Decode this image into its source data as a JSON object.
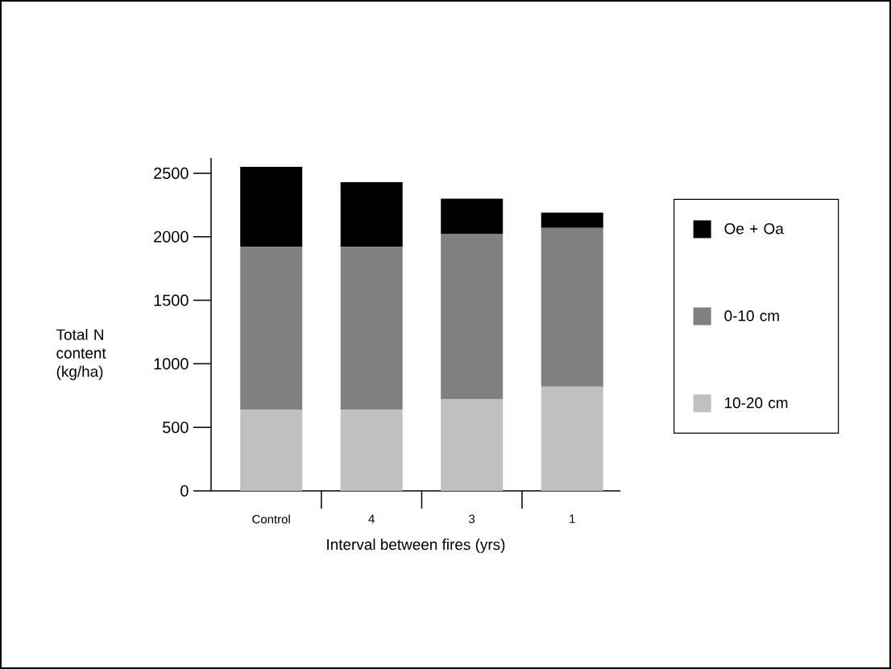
{
  "chart_data": {
    "type": "bar",
    "stacked": true,
    "xlabel": "Interval between fires (yrs)",
    "ylabel": "Total N content (kg/ha)",
    "categories": [
      "Control",
      "4",
      "3",
      "1"
    ],
    "series": [
      {
        "name": "10-20 cm",
        "color": "#c0c0c0",
        "values": [
          640,
          640,
          720,
          820
        ]
      },
      {
        "name": "0-10 cm",
        "color": "#808080",
        "values": [
          1280,
          1280,
          1300,
          1250
        ]
      },
      {
        "name": "Oe + Oa",
        "color": "#000000",
        "values": [
          630,
          510,
          280,
          120
        ]
      }
    ],
    "ylim": [
      0,
      2620
    ],
    "yticks": [
      0,
      500,
      1000,
      1500,
      2000,
      2500
    ],
    "grid": false,
    "legend": "right"
  }
}
